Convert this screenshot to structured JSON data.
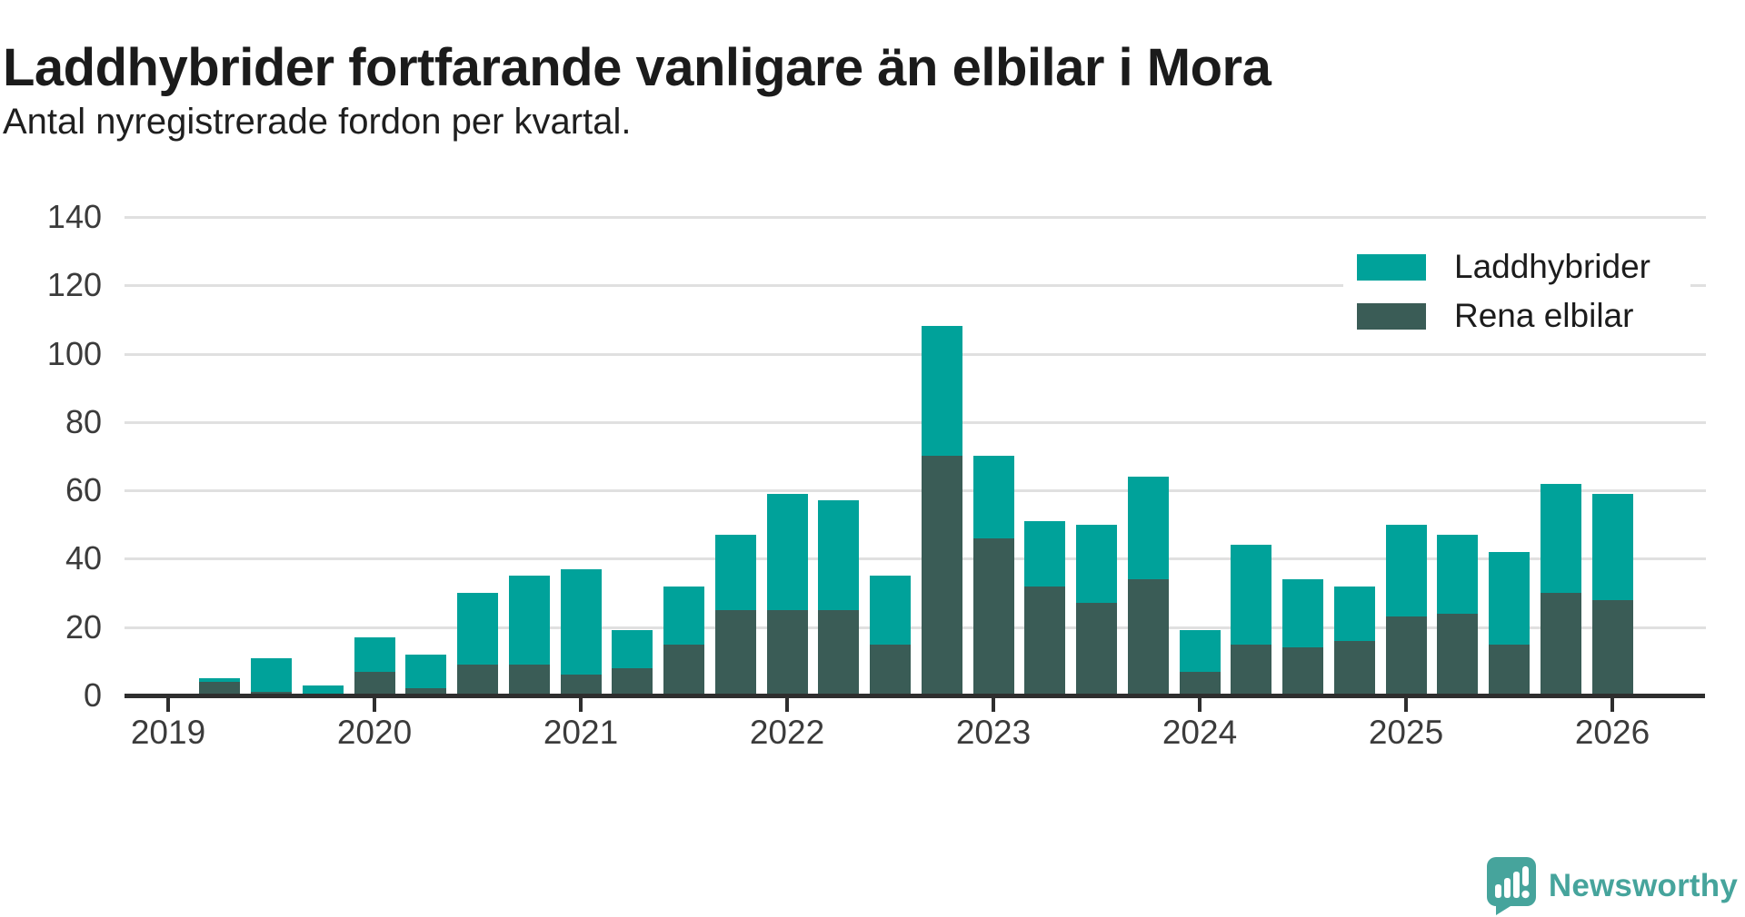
{
  "header": {
    "title": "Laddhybrider fortfarande vanligare än elbilar i Mora",
    "subtitle": "Antal nyregistrerade fordon per kvartal."
  },
  "legend": {
    "items": [
      {
        "label": "Laddhybrider",
        "color": "#00a29a"
      },
      {
        "label": "Rena elbilar",
        "color": "#3a5c56"
      }
    ]
  },
  "attribution": {
    "brand": "Newsworthy",
    "color": "#46a49c"
  },
  "chart_data": {
    "type": "bar",
    "stacked": true,
    "stacked_bottom_series": "Rena elbilar",
    "title": "Laddhybrider fortfarande vanligare än elbilar i Mora",
    "subtitle": "Antal nyregistrerade fordon per kvartal.",
    "categories": [
      "2019 K1",
      "2019 K2",
      "2019 K3",
      "2019 K4",
      "2020 K1",
      "2020 K2",
      "2020 K3",
      "2020 K4",
      "2021 K1",
      "2021 K2",
      "2021 K3",
      "2021 K4",
      "2022 K1",
      "2022 K2",
      "2022 K3",
      "2022 K4",
      "2023 K1",
      "2023 K2",
      "2023 K3",
      "2023 K4",
      "2024 K1",
      "2024 K2",
      "2024 K3",
      "2024 K4",
      "2025 K1",
      "2025 K2",
      "2025 K3",
      "2025 K4",
      "2026 K1"
    ],
    "series": [
      {
        "name": "Laddhybrider",
        "color": "#00a29a",
        "values": [
          0,
          1,
          10,
          3,
          10,
          10,
          21,
          26,
          31,
          11,
          17,
          22,
          34,
          32,
          20,
          38,
          24,
          19,
          23,
          30,
          12,
          29,
          20,
          16,
          27,
          23,
          27,
          32,
          31
        ]
      },
      {
        "name": "Rena elbilar",
        "color": "#3a5c56",
        "values": [
          0,
          4,
          1,
          0,
          7,
          2,
          9,
          9,
          6,
          8,
          15,
          25,
          25,
          25,
          15,
          70,
          46,
          32,
          27,
          34,
          7,
          15,
          14,
          16,
          23,
          24,
          15,
          30,
          28
        ]
      }
    ],
    "totals": [
      0,
      5,
      11,
      3,
      17,
      12,
      30,
      35,
      37,
      19,
      32,
      47,
      59,
      57,
      35,
      108,
      70,
      51,
      50,
      64,
      19,
      44,
      34,
      32,
      50,
      47,
      42,
      62,
      59
    ],
    "xlabel": "",
    "ylabel": "",
    "x_tick_labels": [
      "2019",
      "2020",
      "2021",
      "2022",
      "2023",
      "2024",
      "2025",
      "2026"
    ],
    "yticks": [
      0,
      20,
      40,
      60,
      80,
      100,
      120,
      140
    ],
    "ylim": [
      0,
      140
    ],
    "grid": "horizontal",
    "legend_position": "top-right"
  }
}
